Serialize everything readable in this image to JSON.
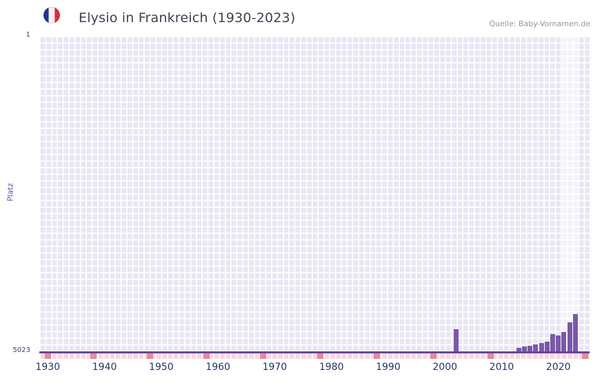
{
  "header": {
    "title": "Elysio in Frankreich (1930-2023)",
    "flag_icon": "france-flag-icon",
    "source": "Quelle: Baby-Vornamen.de"
  },
  "colors": {
    "bar": "#7b58a8",
    "plot-bg": "#e9e6f3",
    "grid-line": "#ffffff",
    "axis-line": "#6247a5",
    "band": "rgba(255,255,255,0.5)",
    "strip-bg": "#f8d6e3",
    "strip-mark": "#e9899c",
    "tick-text": "#1c355f",
    "title-text": "#3b4250",
    "source-text": "#9097a1",
    "ylabel-text": "#5a4fa2",
    "flag-blue": "#27338e",
    "flag-white": "#f2f2f2",
    "flag-red": "#d6303e"
  },
  "chart_data": {
    "type": "bar",
    "title": "Elysio in Frankreich (1930-2023)",
    "source": "Quelle: Baby-Vornamen.de",
    "xlabel": "",
    "ylabel": "Platz",
    "grid": true,
    "legend": false,
    "y_axis": {
      "min": 1,
      "max": 5023,
      "inverted": true,
      "top_tick": "1",
      "bottom_tick": "5023"
    },
    "x_axis": {
      "domain": [
        1929,
        2026
      ],
      "tick_labels": [
        "1930",
        "1940",
        "1950",
        "1960",
        "1970",
        "1980",
        "1990",
        "2000",
        "2010",
        "2020"
      ]
    },
    "highlight_band": {
      "start_year": 2021,
      "end_year": 2024
    },
    "bars": [
      {
        "year": 2002,
        "rank": 4660
      },
      {
        "year": 2013,
        "rank": 4955
      },
      {
        "year": 2014,
        "rank": 4935
      },
      {
        "year": 2015,
        "rank": 4920
      },
      {
        "year": 2016,
        "rank": 4900
      },
      {
        "year": 2017,
        "rank": 4880
      },
      {
        "year": 2018,
        "rank": 4860
      },
      {
        "year": 2019,
        "rank": 4740
      },
      {
        "year": 2020,
        "rank": 4760
      },
      {
        "year": 2021,
        "rank": 4700
      },
      {
        "year": 2022,
        "rank": 4550
      },
      {
        "year": 2023,
        "rank": 4420
      }
    ],
    "bottom_strip": {
      "marked_years": [
        1930,
        1938,
        1948,
        1958,
        1968,
        1978,
        1988,
        1998,
        2008,
        2025
      ]
    }
  }
}
